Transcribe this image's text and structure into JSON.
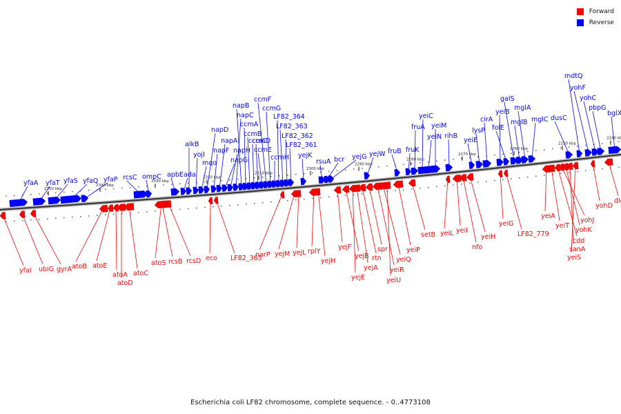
{
  "legend": {
    "forward_label": "Forward",
    "reverse_label": "Reverse",
    "forward_color": "#ff0000",
    "reverse_color": "#0000ff"
  },
  "caption": "Escherichia coli LF82 chromosome, complete sequence. - 0..4773108",
  "kbp_labels": [
    "2350 kbp",
    "2340 kbp",
    "2330 kbp",
    "2320 kbp",
    "2310 kbp",
    "2300 kbp",
    "2290 kbp",
    "2280 kbp",
    "2270 kbp",
    "2260 kbp",
    "2250 kbp",
    "2240 kbp"
  ],
  "reverse_genes": [
    "yfaA",
    "yfaT",
    "yfaS",
    "yfaQ",
    "yfaP",
    "rcsC",
    "ompC",
    "apbE",
    "ada",
    "alkB",
    "yojI",
    "mqo",
    "napD",
    "napF",
    "napA",
    "napG",
    "napH",
    "napC",
    "napB",
    "ccmA",
    "ccmB",
    "ccmC",
    "ccmD",
    "ccmE",
    "ccmF",
    "ccmG",
    "ccmH",
    "LF82_364",
    "LF82_363",
    "LF82_362",
    "LF82_361",
    "yejK",
    "rsuA",
    "bcr",
    "yejG",
    "yejW",
    "fruB",
    "fruK",
    "fruA",
    "yeiC",
    "yeiN",
    "yeiM",
    "rihB",
    "yeiE",
    "lysP",
    "cirA",
    "yeiB",
    "folE",
    "galS",
    "mglB",
    "mglA",
    "mglC",
    "dusC",
    "mdtQ",
    "yohF",
    "yohC",
    "pbpG",
    "bglX"
  ],
  "forward_genes": [
    "yfaI",
    "ubiG",
    "gyrA",
    "atoB",
    "atoE",
    "atoA",
    "atoD",
    "atoC",
    "atoS",
    "rcsB",
    "rcsD",
    "eco",
    "LF82_365",
    "narP",
    "yejM",
    "yejL",
    "rplY",
    "yejH",
    "yejF",
    "yejB",
    "yejE",
    "yejA",
    "rtn",
    "spr",
    "yeiR",
    "yeiQ",
    "yeiU",
    "yeiP",
    "setB",
    "yeiL",
    "yeiI",
    "nfo",
    "yeiH",
    "yeiG",
    "LF82_779",
    "yeiA",
    "yeiT",
    "cdd",
    "yohJ",
    "yohK",
    "sanA",
    "yeiS",
    "yohD",
    "dld"
  ]
}
